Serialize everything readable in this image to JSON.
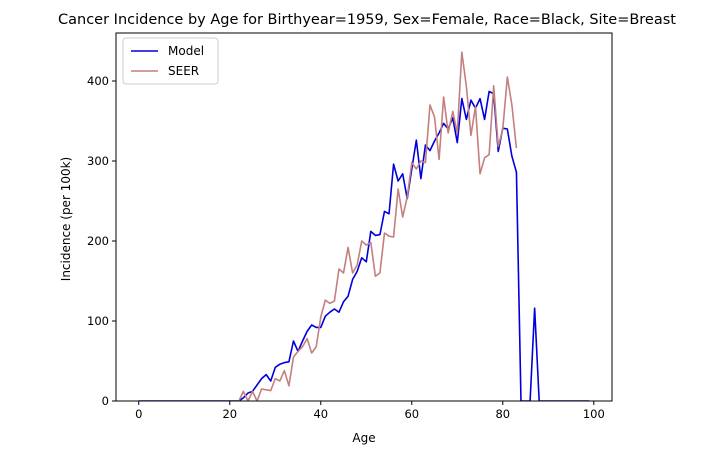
{
  "chart_data": {
    "type": "line",
    "title": "Cancer Incidence by Age for Birthyear=1959, Sex=Female, Race=Black, Site=Breast",
    "xlabel": "Age",
    "ylabel": "Incidence (per 100k)",
    "xlim": [
      -5,
      104
    ],
    "ylim": [
      0,
      460
    ],
    "xticks": [
      0,
      20,
      40,
      60,
      80,
      100
    ],
    "yticks": [
      0,
      100,
      200,
      300,
      400
    ],
    "grid": false,
    "legend_position": "top-left",
    "series": [
      {
        "name": "Model",
        "color": "#0000dd",
        "x": [
          0,
          5,
          10,
          15,
          20,
          21,
          22,
          23,
          24,
          25,
          26,
          27,
          28,
          29,
          30,
          31,
          32,
          33,
          34,
          35,
          36,
          37,
          38,
          39,
          40,
          41,
          42,
          43,
          44,
          45,
          46,
          47,
          48,
          49,
          50,
          51,
          52,
          53,
          54,
          55,
          56,
          57,
          58,
          59,
          60,
          61,
          62,
          63,
          64,
          65,
          66,
          67,
          68,
          69,
          70,
          71,
          72,
          73,
          74,
          75,
          76,
          77,
          78,
          79,
          80,
          81,
          82,
          83,
          84,
          85,
          86,
          87,
          88,
          89,
          90,
          95,
          99
        ],
        "y": [
          0,
          0,
          0,
          0,
          0,
          0,
          0,
          4,
          10,
          12,
          20,
          28,
          33,
          25,
          42,
          46,
          48,
          49,
          75,
          62,
          75,
          87,
          95,
          92,
          92,
          106,
          111,
          115,
          111,
          124,
          131,
          152,
          162,
          179,
          174,
          212,
          207,
          208,
          237,
          234,
          296,
          275,
          284,
          253,
          290,
          326,
          278,
          320,
          313,
          325,
          335,
          347,
          340,
          354,
          323,
          378,
          352,
          376,
          366,
          378,
          352,
          387,
          384,
          312,
          341,
          340,
          306,
          286,
          0,
          0,
          0,
          116,
          0,
          0,
          0,
          0,
          0
        ]
      },
      {
        "name": "SEER",
        "color": "#c47f7f",
        "x": [
          20,
          21,
          22,
          23,
          24,
          25,
          26,
          27,
          28,
          29,
          30,
          31,
          32,
          33,
          34,
          35,
          36,
          37,
          38,
          39,
          40,
          41,
          42,
          43,
          44,
          45,
          46,
          47,
          48,
          49,
          50,
          51,
          52,
          53,
          54,
          55,
          56,
          57,
          58,
          59,
          60,
          61,
          62,
          63,
          64,
          65,
          66,
          67,
          68,
          69,
          70,
          71,
          72,
          73,
          74,
          75,
          76,
          77,
          78,
          79,
          80,
          81,
          82,
          83
        ],
        "y": [
          0,
          0,
          0,
          12,
          0,
          12,
          0,
          15,
          14,
          13,
          28,
          25,
          38,
          19,
          55,
          62,
          68,
          78,
          60,
          68,
          105,
          126,
          122,
          125,
          165,
          160,
          192,
          160,
          170,
          200,
          195,
          198,
          156,
          160,
          210,
          206,
          205,
          265,
          230,
          255,
          298,
          290,
          300,
          298,
          370,
          355,
          302,
          380,
          335,
          362,
          335,
          436,
          393,
          332,
          368,
          284,
          304,
          308,
          394,
          318,
          340,
          405,
          370,
          316
        ]
      }
    ]
  }
}
